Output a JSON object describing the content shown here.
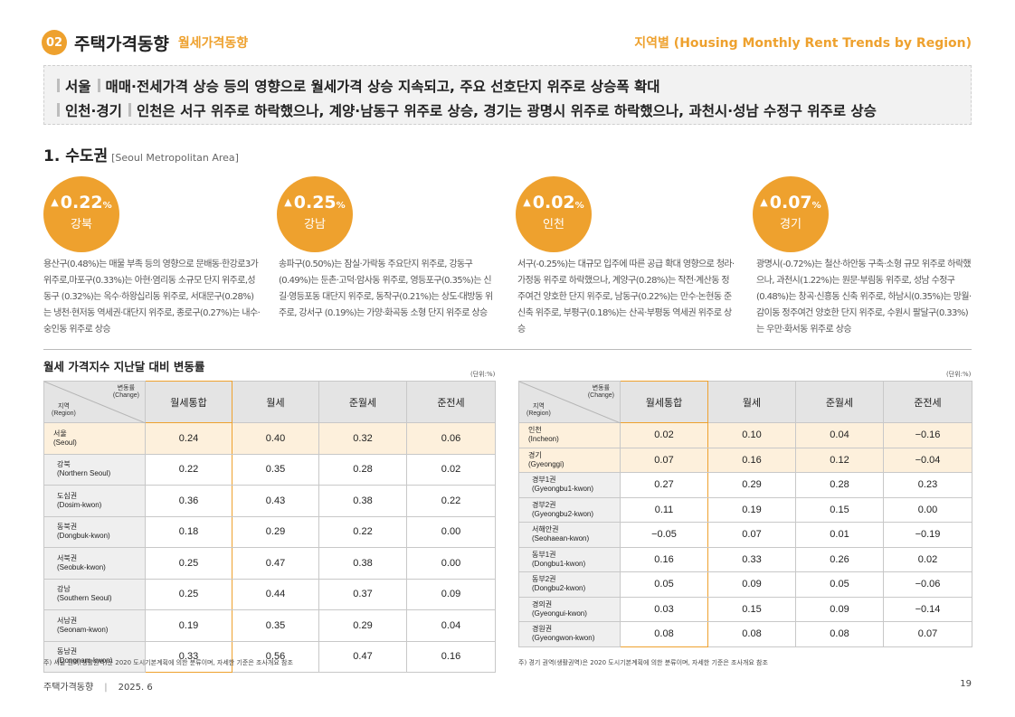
{
  "header": {
    "section_number": "02",
    "title": "주택가격동향",
    "subtitle": "월세가격동향",
    "right_title": "지역별 (Housing Monthly Rent Trends by Region)"
  },
  "summary": {
    "line1_label": "서울",
    "line1_text": "매매·전세가격 상승 등의 영향으로 월세가격 상승 지속되고, 주요 선호단지 위주로 상승폭 확대",
    "line2_label": "인천·경기",
    "line2_text": "인천은 서구 위주로 하락했으나, 계양·남동구 위주로 상승, 경기는 광명시 위주로 하락했으나, 과천시·성남 수정구 위주로 상승"
  },
  "section": {
    "heading": "1. 수도권",
    "heading_en": "[Seoul Metropolitan Area]"
  },
  "regions": [
    {
      "value": "0.22",
      "unit": "%",
      "arrow": "▲",
      "name": "강북",
      "text": "용산구(0.48%)는 매물 부족 등의 영향으로 문배동·한강로3가 위주로,마포구(0.33%)는 아현·염리동 소규모 단지 위주로,성동구 (0.32%)는 옥수·하왕십리동 위주로, 서대문구(0.28%)는 냉천·현저동 역세권·대단지 위주로, 종로구(0.27%)는 내수·숭인동 위주로 상승"
    },
    {
      "value": "0.25",
      "unit": "%",
      "arrow": "▲",
      "name": "강남",
      "text": "송파구(0.50%)는 잠실·가락동 주요단지 위주로, 강동구(0.49%)는 둔촌·고덕·암사동 위주로, 영등포구(0.35%)는 신길·영등포동 대단지 위주로, 동작구(0.21%)는 상도·대방동 위주로, 강서구 (0.19%)는 가양·화곡동 소형 단지 위주로 상승"
    },
    {
      "value": "0.02",
      "unit": "%",
      "arrow": "▲",
      "name": "인천",
      "text": "서구(-0.25%)는 대규모 입주에 따른 공급 확대 영향으로 청라·가정동 위주로 하락했으나, 계양구(0.28%)는 작전·계산동 정주여건 양호한 단지 위주로, 남동구(0.22%)는 만수·논현동 준신축 위주로, 부평구(0.18%)는 산곡·부평동 역세권 위주로 상승"
    },
    {
      "value": "0.07",
      "unit": "%",
      "arrow": "▲",
      "name": "경기",
      "text": "광명시(-0.72%)는 철산·하안동 구축·소형 규모 위주로 하락했으나, 과천시(1.22%)는 원문·부림동 위주로, 성남 수정구(0.48%)는 창곡·신흥동 신축 위주로, 하남시(0.35%)는 망월·감이동 정주여건 양호한 단지 위주로, 수원시 팔달구(0.33%)는 우만·화서동 위주로 상승"
    }
  ],
  "table_title": "월세 가격지수 지난달 대비 변동률",
  "unit_label": "(단위:%)",
  "table_header": {
    "change_ko": "변동률",
    "change_en": "(Change)",
    "region_ko": "지역",
    "region_en": "(Region)",
    "columns": [
      "월세통합",
      "월세",
      "준월세",
      "준전세"
    ]
  },
  "table_left": [
    {
      "ko": "서울",
      "en": "(Seoul)",
      "major": true,
      "values": [
        "0.24",
        "0.40",
        "0.32",
        "0.06"
      ]
    },
    {
      "ko": "강북",
      "en": "(Northern Seoul)",
      "major": false,
      "values": [
        "0.22",
        "0.35",
        "0.28",
        "0.02"
      ]
    },
    {
      "ko": "도심권",
      "en": "(Dosim-kwon)",
      "major": false,
      "values": [
        "0.36",
        "0.43",
        "0.38",
        "0.22"
      ]
    },
    {
      "ko": "동북권",
      "en": "(Dongbuk-kwon)",
      "major": false,
      "values": [
        "0.18",
        "0.29",
        "0.22",
        "0.00"
      ]
    },
    {
      "ko": "서북권",
      "en": "(Seobuk-kwon)",
      "major": false,
      "values": [
        "0.25",
        "0.47",
        "0.38",
        "0.00"
      ]
    },
    {
      "ko": "강남",
      "en": "(Southern Seoul)",
      "major": false,
      "values": [
        "0.25",
        "0.44",
        "0.37",
        "0.09"
      ]
    },
    {
      "ko": "서남권",
      "en": "(Seonam-kwon)",
      "major": false,
      "values": [
        "0.19",
        "0.35",
        "0.29",
        "0.04"
      ]
    },
    {
      "ko": "동남권",
      "en": "(Dongnam-kwon)",
      "major": false,
      "values": [
        "0.33",
        "0.56",
        "0.47",
        "0.16"
      ]
    }
  ],
  "table_right": [
    {
      "ko": "인천",
      "en": "(Incheon)",
      "major": true,
      "values": [
        "0.02",
        "0.10",
        "0.04",
        "−0.16"
      ]
    },
    {
      "ko": "경기",
      "en": "(Gyeonggi)",
      "major": true,
      "values": [
        "0.07",
        "0.16",
        "0.12",
        "−0.04"
      ]
    },
    {
      "ko": "경부1권",
      "en": "(Gyeongbu1-kwon)",
      "major": false,
      "values": [
        "0.27",
        "0.29",
        "0.28",
        "0.23"
      ]
    },
    {
      "ko": "경부2권",
      "en": "(Gyeongbu2-kwon)",
      "major": false,
      "values": [
        "0.11",
        "0.19",
        "0.15",
        "0.00"
      ]
    },
    {
      "ko": "서해안권",
      "en": "(Seohaean-kwon)",
      "major": false,
      "values": [
        "−0.05",
        "0.07",
        "0.01",
        "−0.19"
      ]
    },
    {
      "ko": "동부1권",
      "en": "(Dongbu1-kwon)",
      "major": false,
      "values": [
        "0.16",
        "0.33",
        "0.26",
        "0.02"
      ]
    },
    {
      "ko": "동부2권",
      "en": "(Dongbu2-kwon)",
      "major": false,
      "values": [
        "0.05",
        "0.09",
        "0.05",
        "−0.06"
      ]
    },
    {
      "ko": "경의권",
      "en": "(Gyeongui-kwon)",
      "major": false,
      "values": [
        "0.03",
        "0.15",
        "0.09",
        "−0.14"
      ]
    },
    {
      "ko": "경원권",
      "en": "(Gyeongwon-kwon)",
      "major": false,
      "values": [
        "0.08",
        "0.08",
        "0.08",
        "0.07"
      ]
    }
  ],
  "note_left": "주) 서울 권역(생활권역)은 2020 도시기본계획에 의한 분류이며, 자세한 기준은 조사개요 참조",
  "note_right": "주) 경기 권역(생활권역)은 2020 도시기본계획에 의한 분류이며, 자세한 기준은 조사개요 참조",
  "footer": {
    "title": "주택가격동향",
    "separator": "|",
    "date": "2025. 6",
    "page": "19"
  },
  "colors": {
    "accent": "#eea12e",
    "highlight_row": "#fdf0dc",
    "header_bg": "#e4e4e4"
  }
}
